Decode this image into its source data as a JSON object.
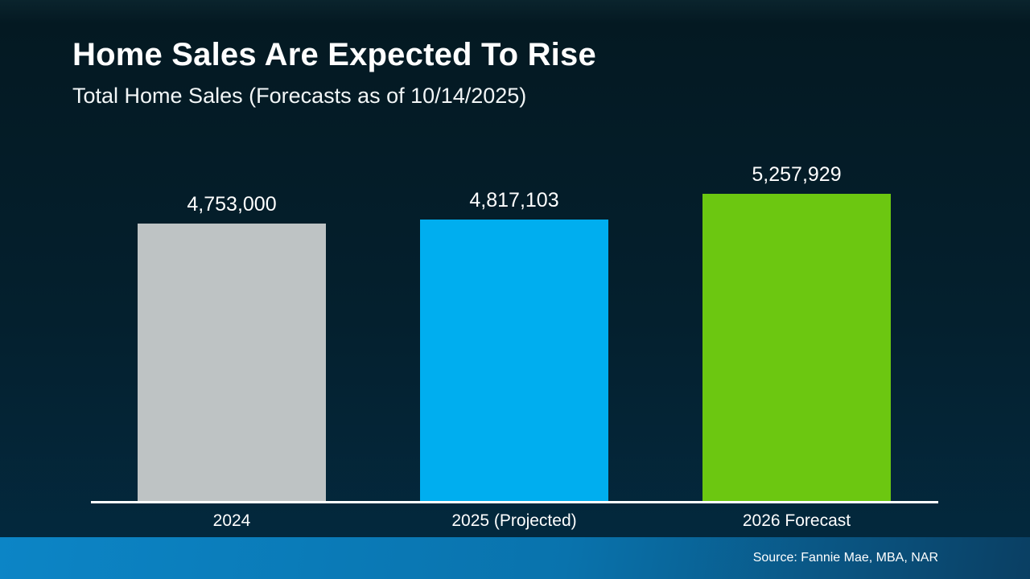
{
  "header": {
    "title": "Home Sales Are Expected To Rise",
    "subtitle": "Total Home Sales (Forecasts as of 10/14/2025)"
  },
  "footer": {
    "source": "Source: Fannie Mae, MBA, NAR"
  },
  "colors": {
    "background_top": "#041922",
    "background_bottom": "#032a40",
    "axis_line": "#ffffff",
    "text": "#ffffff",
    "footer_left": "#0c85c6",
    "footer_right": "#0a3f63"
  },
  "chart_data": {
    "type": "bar",
    "title": "Home Sales Are Expected To Rise",
    "subtitle": "Total Home Sales (Forecasts as of 10/14/2025)",
    "categories": [
      "2024",
      "2025 (Projected)",
      "2026 Forecast"
    ],
    "values": [
      4753000,
      4817103,
      5257929
    ],
    "value_labels": [
      "4,753,000",
      "4,817,103",
      "5,257,929"
    ],
    "bar_colors": [
      "#bec3c4",
      "#00aeef",
      "#6cc711"
    ],
    "xlabel": "",
    "ylabel": "",
    "ylim": [
      0,
      5500000
    ],
    "baseline": 0,
    "grid": false,
    "legend": false,
    "source": "Source: Fannie Mae, MBA, NAR"
  }
}
